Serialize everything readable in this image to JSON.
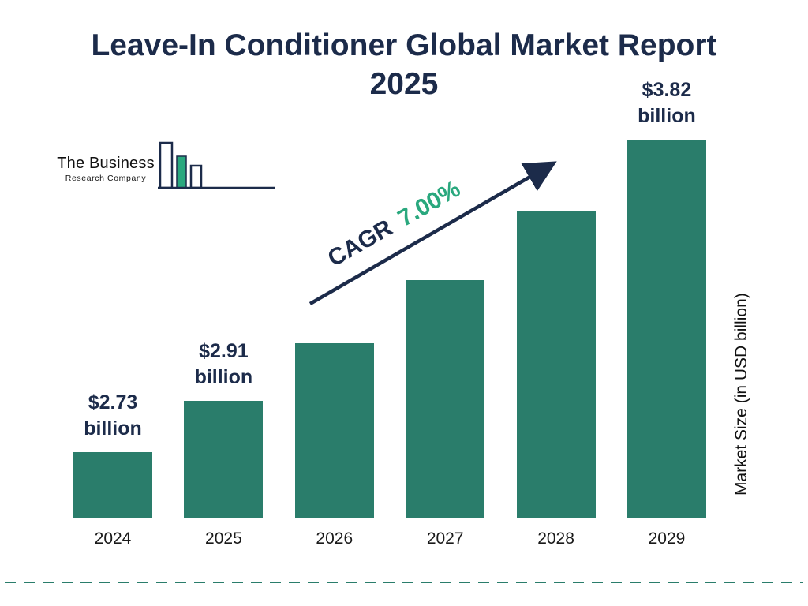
{
  "title": {
    "line1": "Leave-In Conditioner Global Market Report",
    "line2": "2025"
  },
  "logo": {
    "line1": "The Business",
    "line2": "Research Company"
  },
  "cagr": {
    "label": "CAGR",
    "value": "7.00%"
  },
  "y_axis_label": "Market Size (in USD billion)",
  "colors": {
    "bar": "#2a7d6b",
    "navy": "#1c2b4a",
    "green": "#2aa87e"
  },
  "chart_data": {
    "type": "bar",
    "title": "Leave-In Conditioner Global Market Report 2025",
    "categories": [
      "2024",
      "2025",
      "2026",
      "2027",
      "2028",
      "2029"
    ],
    "values": [
      2.73,
      2.91,
      3.11,
      3.33,
      3.57,
      3.82
    ],
    "value_labels": [
      [
        "$2.73",
        "billion"
      ],
      [
        "$2.91",
        "billion"
      ],
      null,
      null,
      null,
      [
        "$3.82",
        "billion"
      ]
    ],
    "cagr": "7.00%",
    "xlabel": "",
    "ylabel": "Market Size (in USD billion)",
    "ylim": [
      2.5,
      3.95
    ],
    "grid": false,
    "legend": "none"
  }
}
